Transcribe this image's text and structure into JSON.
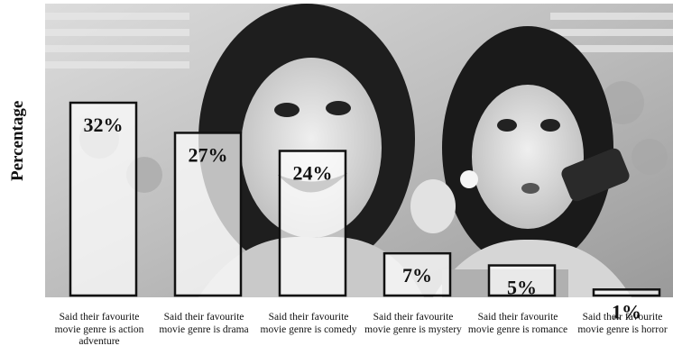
{
  "chart_data": {
    "type": "bar",
    "ylabel": "Percentage",
    "categories": [
      "Said their favourite movie genre is action adventure",
      "Said their favourite movie genre is drama",
      "Said their favourite movie genre is comedy",
      "Said their favourite movie genre is mystery",
      "Said their favourite movie genre is romance",
      "Said their favourite movie genre is horror"
    ],
    "values": [
      32,
      27,
      24,
      7,
      5,
      1
    ],
    "value_labels": [
      "32%",
      "27%",
      "24%",
      "7%",
      "5%",
      "1%"
    ],
    "ylim": [
      0,
      32
    ],
    "grid": false,
    "legend": "none",
    "background": "photo of mother and daughter watching TV (grayscale)"
  },
  "colors": {
    "bar_fill": "#ffffff",
    "bar_stroke": "#111111",
    "text": "#111111"
  }
}
